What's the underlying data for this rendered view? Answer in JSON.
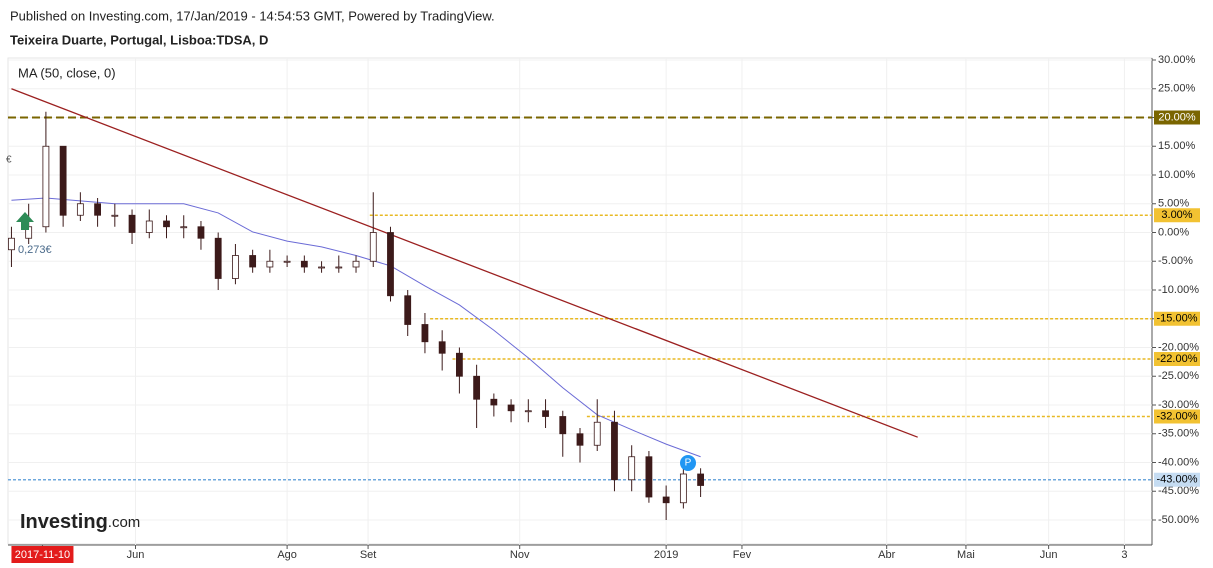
{
  "chart_data": {
    "type": "candlestick",
    "published": "Published on Investing.com, 17/Jan/2019 - 14:54:53 GMT, Powered by TradingView.",
    "title": "Teixeira Duarte, Portugal, Lisboa:TDSA, D",
    "indicator": "MA (50, close, 0)",
    "annotations": {
      "price": "0,273€",
      "currency": "€",
      "marker": "P"
    },
    "logo": "Investing",
    "logo_suffix": ".com",
    "xlim": [
      -1,
      331
    ],
    "xticks": [
      {
        "value": 9,
        "label": "2017-11-10"
      },
      {
        "value": 36,
        "label": "Jun"
      },
      {
        "value": 80,
        "label": "Ago"
      },
      {
        "value": 103.5,
        "label": "Set"
      },
      {
        "value": 147.5,
        "label": "Nov"
      },
      {
        "value": 190,
        "label": "2019"
      },
      {
        "value": 212,
        "label": "Fev"
      },
      {
        "value": 254,
        "label": "Abr"
      },
      {
        "value": 277,
        "label": "Mai"
      },
      {
        "value": 301,
        "label": "Jun"
      },
      {
        "value": 323,
        "label": "3"
      }
    ],
    "highlighted_xtick": 0,
    "ylim": [
      -50,
      30
    ],
    "yticks": [
      {
        "value": 30,
        "label": "30.00%"
      },
      {
        "value": 25,
        "label": "25.00%"
      },
      {
        "value": 20,
        "label": "20.00%"
      },
      {
        "value": 15,
        "label": "15.00%"
      },
      {
        "value": 10,
        "label": "10.00%"
      },
      {
        "value": 5,
        "label": "5.00%"
      },
      {
        "value": 0,
        "label": "0.00%"
      },
      {
        "value": -5,
        "label": "-5.00%"
      },
      {
        "value": -10,
        "label": "-10.00%"
      },
      {
        "value": -15,
        "label": "-15.00%"
      },
      {
        "value": -20,
        "label": "-20.00%"
      },
      {
        "value": -25,
        "label": "-25.00%"
      },
      {
        "value": -30,
        "label": "-30.00%"
      },
      {
        "value": -35,
        "label": "-35.00%"
      },
      {
        "value": -40,
        "label": "-40.00%"
      },
      {
        "value": -45,
        "label": "-45.00%"
      },
      {
        "value": -50,
        "label": "-50.00%"
      }
    ],
    "grid": true,
    "candles": {
      "x": [
        0,
        5,
        10,
        15,
        20,
        25,
        30,
        35,
        40,
        45,
        50,
        55,
        60,
        65,
        70,
        75,
        80,
        85,
        90,
        95,
        100,
        105,
        110,
        115,
        120,
        125,
        130,
        135,
        140,
        145,
        150,
        155,
        160,
        165,
        170,
        175,
        180,
        185,
        190,
        195,
        200
      ],
      "open": [
        -3,
        -1,
        1,
        15,
        3,
        5,
        3,
        3,
        0,
        2,
        1,
        1,
        -1,
        -8,
        -4,
        -6,
        -5,
        -5,
        -6,
        -6,
        -6,
        -5,
        0,
        -11,
        -16,
        -19,
        -21,
        -25,
        -29,
        -30,
        -31,
        -31,
        -32,
        -35,
        -37,
        -33,
        -43,
        -39,
        -46,
        -47,
        -42
      ],
      "high": [
        1,
        5,
        21,
        15,
        7,
        6,
        5,
        4,
        4,
        3,
        3,
        2,
        0,
        -2,
        -3,
        -3,
        -4,
        -4,
        -5,
        -4,
        -4,
        7,
        1,
        -10,
        -14,
        -17,
        -20,
        -23,
        -28,
        -29,
        -29,
        -29,
        -31,
        -34,
        -29,
        -31,
        -37,
        -38,
        -44,
        -41,
        -41
      ],
      "low": [
        -6,
        -2,
        0,
        1,
        2,
        1,
        1,
        -2,
        -1,
        -1,
        -1,
        -3,
        -10,
        -9,
        -7,
        -7,
        -6,
        -7,
        -7,
        -7,
        -7,
        -6,
        -12,
        -18,
        -21,
        -24,
        -28,
        -34,
        -32,
        -33,
        -33,
        -34,
        -39,
        -40,
        -38,
        -45,
        -45,
        -47,
        -50,
        -48,
        -46
      ],
      "close": [
        -1,
        1,
        15,
        3,
        5,
        3,
        3,
        0,
        2,
        1,
        1,
        -1,
        -8,
        -4,
        -6,
        -5,
        -5,
        -6,
        -6,
        -6,
        -5,
        0,
        -11,
        -16,
        -19,
        -21,
        -25,
        -29,
        -30,
        -31,
        -31,
        -32,
        -35,
        -37,
        -33,
        -43,
        -39,
        -46,
        -47,
        -42,
        -44
      ],
      "up_color": "#ffffff",
      "down_color": "#3c1a1a",
      "outline_color": "#3c1a1a"
    },
    "ma": {
      "color": "#6b6bd6",
      "x": [
        0,
        10,
        20,
        30,
        40,
        50,
        60,
        70,
        80,
        90,
        100,
        110,
        120,
        130,
        140,
        150,
        160,
        170,
        180,
        190,
        200
      ],
      "values": [
        5.6,
        6,
        5.5,
        5,
        5,
        5,
        3.4,
        0.1,
        -1.5,
        -2.5,
        -4,
        -5.8,
        -9.3,
        -12.6,
        -17,
        -21.8,
        -27,
        -31.7,
        -34.3,
        -36.8,
        -39
      ]
    },
    "trendline": {
      "color": "#9b2020",
      "x": [
        0,
        263
      ],
      "values": [
        25,
        -35.6
      ]
    },
    "levels": [
      {
        "value": 20,
        "label": "20.00%",
        "start": -1,
        "color": "#7a6500",
        "label_color": "#7a6500",
        "text_color": "#ffffff"
      },
      {
        "value": 3,
        "label": "3.00%",
        "start": 104,
        "color": "#e8b923",
        "label_color": "#f2c232",
        "text_color": "#000000"
      },
      {
        "value": -15,
        "label": "-15.00%",
        "start": 121.5,
        "color": "#e8b923",
        "label_color": "#f2c232",
        "text_color": "#000000"
      },
      {
        "value": -22,
        "label": "-22.00%",
        "start": 128,
        "color": "#e8b923",
        "label_color": "#f2c232",
        "text_color": "#000000"
      },
      {
        "value": -32,
        "label": "-32.00%",
        "start": 167,
        "color": "#e8b923",
        "label_color": "#f2c232",
        "text_color": "#000000"
      },
      {
        "value": -43,
        "label": "-43.00%",
        "start": -1,
        "color": "#6fa8dc",
        "label_color": "#c5dcf2",
        "text_color": "#000000"
      }
    ]
  }
}
